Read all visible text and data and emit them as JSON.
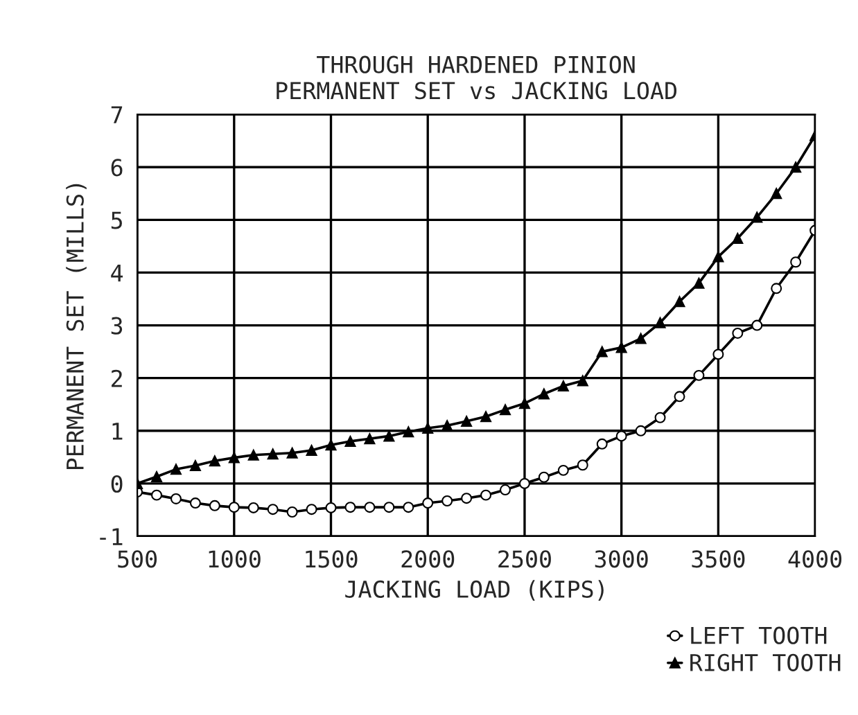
{
  "chart_data": {
    "type": "line",
    "title": "THROUGH HARDENED PINION\nPERMANENT SET vs JACKING LOAD",
    "xlabel": "JACKING LOAD (KIPS)",
    "ylabel": "PERMANENT SET (MILLS)",
    "x": [
      500,
      600,
      700,
      800,
      900,
      1000,
      1100,
      1200,
      1300,
      1400,
      1500,
      1600,
      1700,
      1800,
      1900,
      2000,
      2100,
      2200,
      2300,
      2400,
      2500,
      2600,
      2700,
      2800,
      2900,
      3000,
      3100,
      3200,
      3300,
      3400,
      3500,
      3600,
      3700,
      3800,
      3900,
      4000
    ],
    "series": [
      {
        "name": "LEFT TOOTH",
        "color": "#000000",
        "marker": "circle",
        "values": [
          -0.16,
          -0.22,
          -0.29,
          -0.37,
          -0.42,
          -0.45,
          -0.46,
          -0.49,
          -0.54,
          -0.49,
          -0.46,
          -0.45,
          -0.45,
          -0.45,
          -0.45,
          -0.37,
          -0.33,
          -0.28,
          -0.22,
          -0.12,
          0.0,
          0.12,
          0.25,
          0.35,
          0.75,
          0.9,
          1.0,
          1.25,
          1.65,
          2.05,
          2.45,
          2.85,
          3.0,
          3.7,
          4.2,
          4.8
        ]
      },
      {
        "name": "RIGHT TOOTH",
        "color": "#000000",
        "marker": "triangle",
        "values": [
          0.0,
          0.13,
          0.27,
          0.34,
          0.43,
          0.49,
          0.54,
          0.56,
          0.58,
          0.63,
          0.73,
          0.8,
          0.85,
          0.9,
          0.98,
          1.05,
          1.1,
          1.18,
          1.27,
          1.4,
          1.52,
          1.7,
          1.85,
          1.95,
          2.5,
          2.58,
          2.75,
          3.05,
          3.45,
          3.8,
          4.3,
          4.65,
          5.05,
          5.5,
          6.0,
          6.6
        ]
      }
    ],
    "xlim": [
      500,
      4000
    ],
    "xticks": [
      500,
      1000,
      1500,
      2000,
      2500,
      3000,
      3500,
      4000
    ],
    "ylim": [
      -1,
      7
    ],
    "yticks": [
      -1,
      0,
      1,
      2,
      3,
      4,
      5,
      6,
      7
    ],
    "grid": true,
    "legend": "bottom right",
    "line_style": "solid"
  }
}
